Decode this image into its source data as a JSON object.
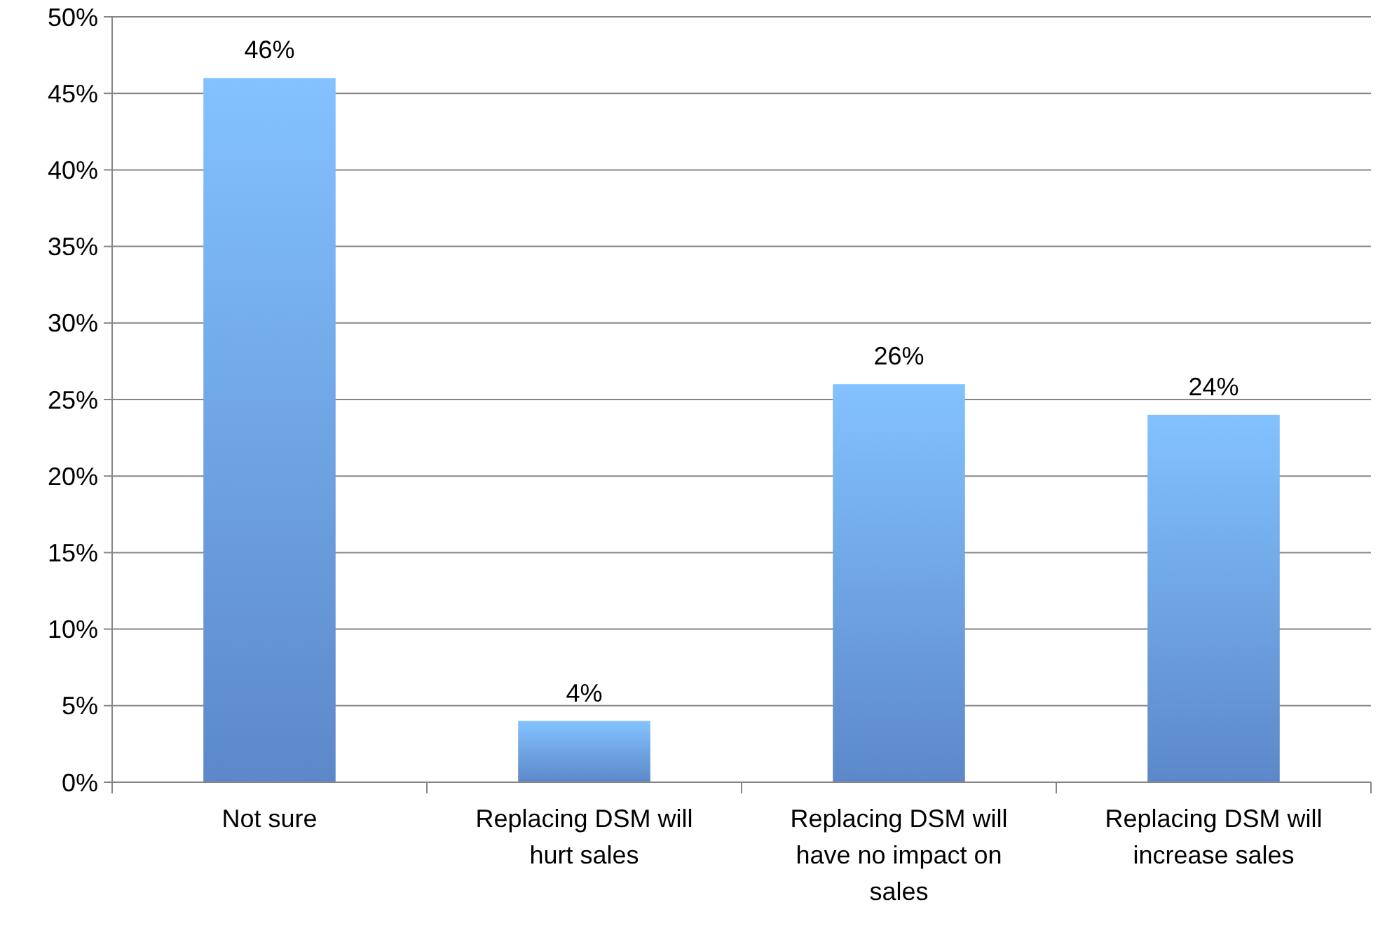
{
  "chart_data": {
    "type": "bar",
    "categories": [
      "Not sure",
      "Replacing DSM will hurt sales",
      "Replacing DSM will have no impact on sales",
      "Replacing DSM will increase sales"
    ],
    "values": [
      46,
      4,
      26,
      24
    ],
    "value_labels": [
      "46%",
      "4%",
      "26%",
      "24%"
    ],
    "color": "#6a9de8",
    "ylim": [
      0,
      50
    ],
    "yticks": [
      {
        "value": 0,
        "label": "0%"
      },
      {
        "value": 5,
        "label": "5%"
      },
      {
        "value": 10,
        "label": "10%"
      },
      {
        "value": 15,
        "label": "15%"
      },
      {
        "value": 20,
        "label": "20%"
      },
      {
        "value": 25,
        "label": "25%"
      },
      {
        "value": 30,
        "label": "30%"
      },
      {
        "value": 35,
        "label": "35%"
      },
      {
        "value": 40,
        "label": "40%"
      },
      {
        "value": 45,
        "label": "45%"
      },
      {
        "value": 50,
        "label": "50%"
      }
    ],
    "grid": "y"
  }
}
